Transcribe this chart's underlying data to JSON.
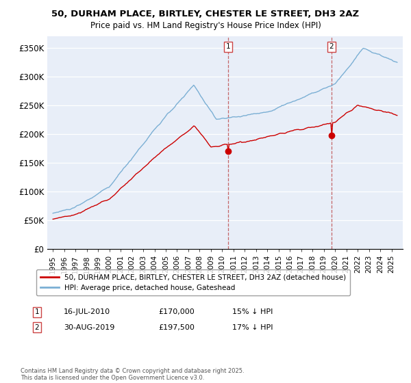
{
  "title_line1": "50, DURHAM PLACE, BIRTLEY, CHESTER LE STREET, DH3 2AZ",
  "title_line2": "Price paid vs. HM Land Registry's House Price Index (HPI)",
  "ylabel_ticks": [
    "£0",
    "£50K",
    "£100K",
    "£150K",
    "£200K",
    "£250K",
    "£300K",
    "£350K"
  ],
  "ytick_values": [
    0,
    50000,
    100000,
    150000,
    200000,
    250000,
    300000,
    350000
  ],
  "ylim": [
    0,
    370000
  ],
  "xlim_start": 1994.5,
  "xlim_end": 2026.0,
  "legend_line1": "50, DURHAM PLACE, BIRTLEY, CHESTER LE STREET, DH3 2AZ (detached house)",
  "legend_line2": "HPI: Average price, detached house, Gateshead",
  "marker1_date": "16-JUL-2010",
  "marker1_price": 170000,
  "marker1_label": "15% ↓ HPI",
  "marker2_date": "30-AUG-2019",
  "marker2_price": 197500,
  "marker2_label": "17% ↓ HPI",
  "footnote": "Contains HM Land Registry data © Crown copyright and database right 2025.\nThis data is licensed under the Open Government Licence v3.0.",
  "red_color": "#cc0000",
  "blue_color": "#7bafd4",
  "bg_color": "#e8eef8",
  "marker1_x": 2010.54,
  "marker2_x": 2019.67,
  "vline1_x": 2010.54,
  "vline2_x": 2019.67
}
